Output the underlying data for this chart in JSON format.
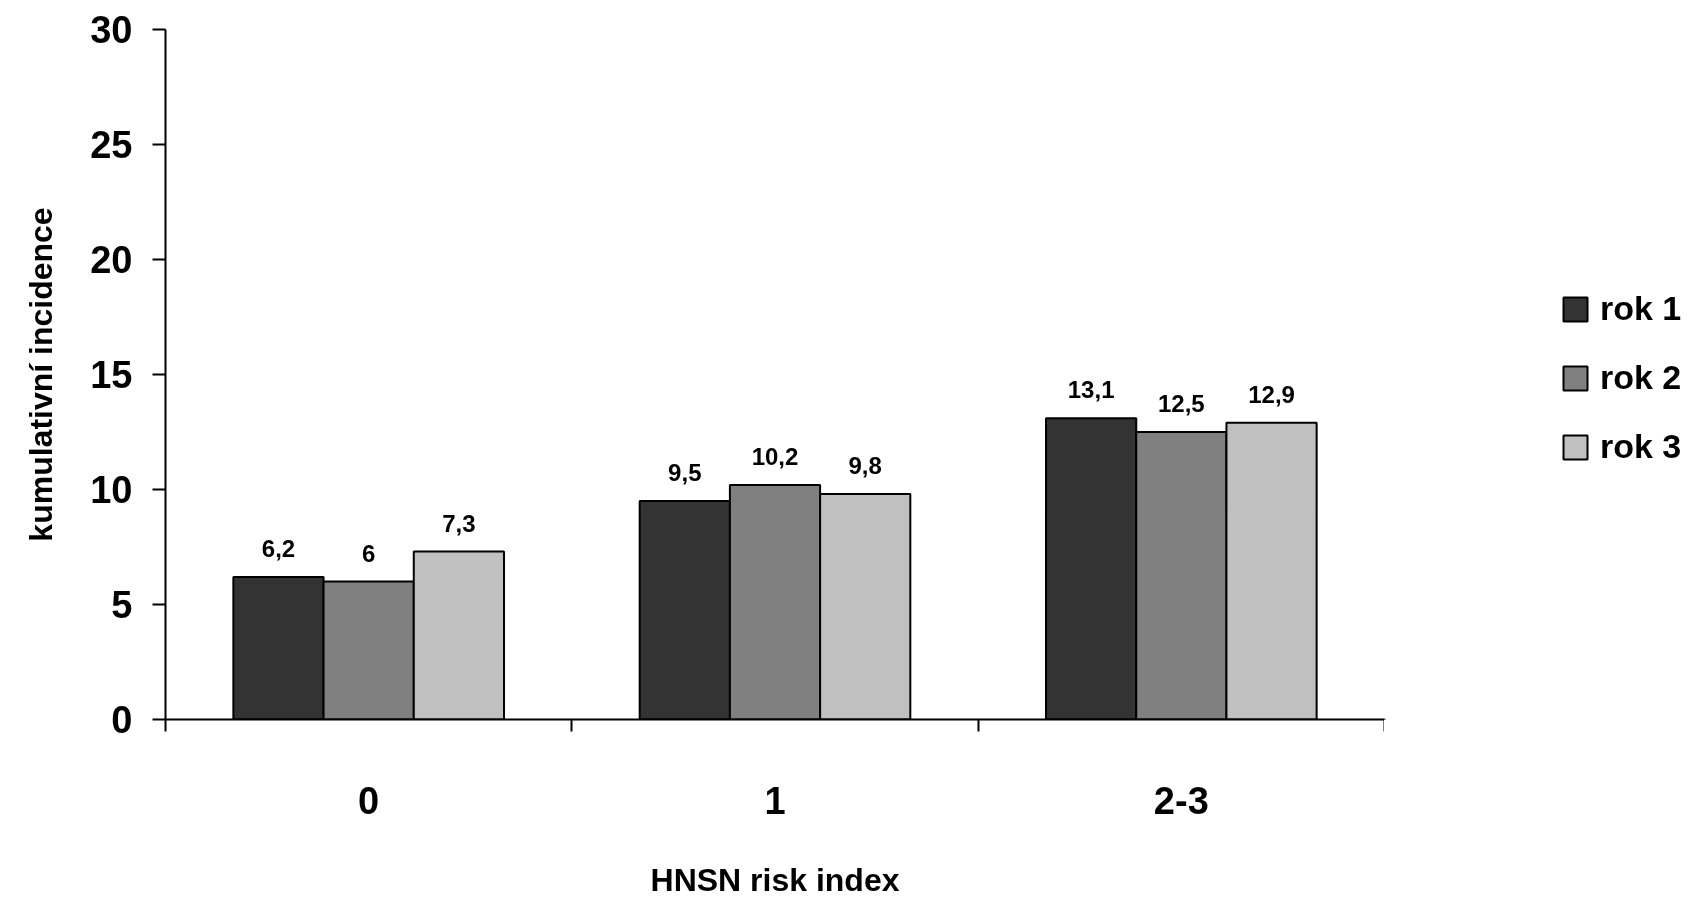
{
  "chart_data": {
    "type": "bar",
    "xlabel": "HNSN risk index",
    "ylabel": "kumulativní incidence",
    "categories": [
      "0",
      "1",
      "2-3"
    ],
    "series": [
      {
        "name": "rok 1",
        "color": "#333333",
        "values": [
          6.2,
          9.5,
          13.1
        ],
        "value_labels": [
          "6,2",
          "9,5",
          "13,1"
        ]
      },
      {
        "name": "rok 2",
        "color": "#808080",
        "values": [
          6,
          10.2,
          12.5
        ],
        "value_labels": [
          "6",
          "10,2",
          "12,5"
        ]
      },
      {
        "name": "rok 3",
        "color": "#c0c0c0",
        "values": [
          7.3,
          9.8,
          12.9
        ],
        "value_labels": [
          "7,3",
          "9,8",
          "12,9"
        ]
      }
    ],
    "ylim": [
      0,
      30
    ],
    "yticks": [
      0,
      5,
      10,
      15,
      20,
      25,
      30
    ],
    "legend": "right"
  }
}
